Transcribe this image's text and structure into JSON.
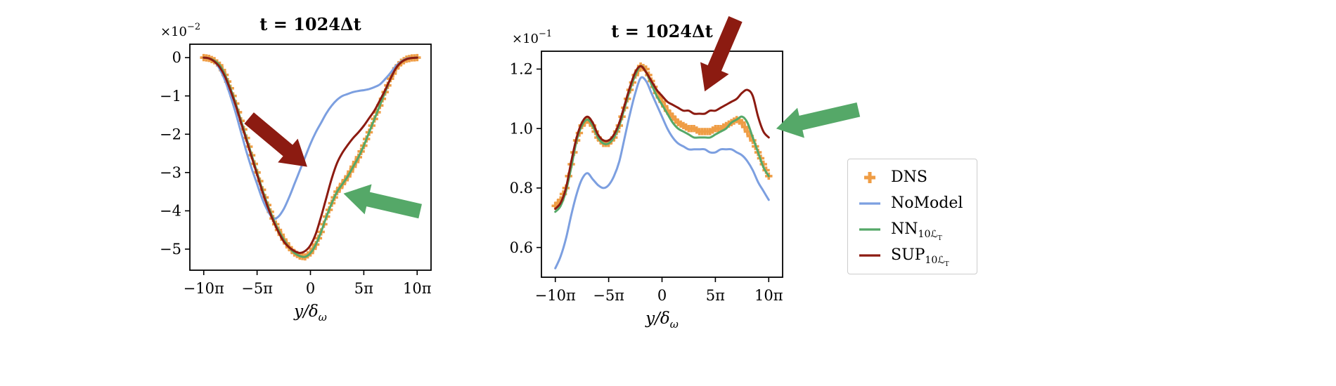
{
  "figure": {
    "background": "#ffffff"
  },
  "legend": {
    "position": "right of plots",
    "items": [
      {
        "label": "DNS",
        "sub": "",
        "subsub": "",
        "marker": "plus",
        "color": "#EF9D45"
      },
      {
        "label": "NoModel",
        "sub": "",
        "subsub": "",
        "marker": "line",
        "color": "#7C9FE0"
      },
      {
        "label": "NN",
        "sub": "10ℒ",
        "subsub": "T",
        "marker": "line",
        "color": "#55A868"
      },
      {
        "label": "SUP",
        "sub": "10ℒ",
        "subsub": "T",
        "marker": "line",
        "color": "#8C1B11"
      }
    ]
  },
  "chart_data": [
    {
      "type": "line",
      "title": "t = 1024Δt",
      "offset_label": {
        "base": "×10",
        "exp": "−2"
      },
      "xlabel": {
        "base": "y/δ",
        "sub": "ω"
      },
      "xlim": [
        -11.3,
        11.3
      ],
      "ylim": [
        -5.55,
        0.35
      ],
      "grid": false,
      "xticks": [
        {
          "v": -10,
          "label": "−10π"
        },
        {
          "v": -5,
          "label": "−5π"
        },
        {
          "v": 0,
          "label": "0"
        },
        {
          "v": 5,
          "label": "5π"
        },
        {
          "v": 10,
          "label": "10π"
        }
      ],
      "yticks": [
        {
          "v": 0,
          "label": "0"
        },
        {
          "v": -1,
          "label": "−1"
        },
        {
          "v": -2,
          "label": "−2"
        },
        {
          "v": -3,
          "label": "−3"
        },
        {
          "v": -4,
          "label": "−4"
        },
        {
          "v": -5,
          "label": "−5"
        }
      ],
      "x": [
        -10,
        -9.5,
        -9,
        -8.5,
        -8,
        -7.5,
        -7,
        -6.5,
        -6,
        -5.5,
        -5,
        -4.5,
        -4,
        -3.5,
        -3,
        -2.5,
        -2,
        -1.5,
        -1,
        -0.5,
        0,
        0.5,
        1,
        1.5,
        2,
        2.5,
        3,
        3.5,
        4,
        4.5,
        5,
        5.5,
        6,
        6.5,
        7,
        7.5,
        8,
        8.5,
        9,
        9.5,
        10
      ],
      "series": [
        {
          "name": "DNS",
          "type": "markers",
          "color": "#EF9D45",
          "values": [
            0,
            -0.02,
            -0.08,
            -0.2,
            -0.45,
            -0.8,
            -1.2,
            -1.65,
            -2.1,
            -2.55,
            -3.0,
            -3.45,
            -3.85,
            -4.2,
            -4.5,
            -4.75,
            -4.95,
            -5.1,
            -5.18,
            -5.2,
            -5.1,
            -4.88,
            -4.55,
            -4.15,
            -3.8,
            -3.5,
            -3.3,
            -3.1,
            -2.85,
            -2.6,
            -2.3,
            -1.95,
            -1.6,
            -1.25,
            -0.9,
            -0.55,
            -0.28,
            -0.12,
            -0.04,
            -0.01,
            0
          ]
        },
        {
          "name": "NoModel",
          "type": "line",
          "color": "#7C9FE0",
          "values": [
            0,
            -0.02,
            -0.1,
            -0.3,
            -0.6,
            -1.0,
            -1.45,
            -1.95,
            -2.45,
            -2.9,
            -3.3,
            -3.7,
            -4.0,
            -4.2,
            -4.15,
            -3.95,
            -3.65,
            -3.3,
            -2.95,
            -2.6,
            -2.25,
            -1.95,
            -1.7,
            -1.45,
            -1.25,
            -1.1,
            -1.0,
            -0.95,
            -0.9,
            -0.87,
            -0.85,
            -0.82,
            -0.77,
            -0.7,
            -0.56,
            -0.4,
            -0.22,
            -0.1,
            -0.03,
            -0.01,
            0
          ]
        },
        {
          "name": "NN10LT",
          "type": "line",
          "color": "#55A868",
          "values": [
            0,
            -0.02,
            -0.08,
            -0.2,
            -0.45,
            -0.8,
            -1.2,
            -1.65,
            -2.1,
            -2.55,
            -3.0,
            -3.45,
            -3.85,
            -4.2,
            -4.5,
            -4.75,
            -4.95,
            -5.1,
            -5.18,
            -5.2,
            -5.1,
            -4.88,
            -4.55,
            -4.15,
            -3.8,
            -3.5,
            -3.3,
            -3.1,
            -2.85,
            -2.6,
            -2.3,
            -1.95,
            -1.6,
            -1.25,
            -0.9,
            -0.55,
            -0.28,
            -0.12,
            -0.04,
            -0.01,
            0
          ]
        },
        {
          "name": "SUP10LT",
          "type": "line",
          "color": "#8C1B11",
          "values": [
            0,
            -0.02,
            -0.1,
            -0.25,
            -0.5,
            -0.85,
            -1.25,
            -1.7,
            -2.15,
            -2.6,
            -3.05,
            -3.5,
            -3.9,
            -4.25,
            -4.55,
            -4.8,
            -4.95,
            -5.05,
            -5.1,
            -5.05,
            -4.9,
            -4.6,
            -4.15,
            -3.65,
            -3.15,
            -2.75,
            -2.48,
            -2.28,
            -2.1,
            -1.95,
            -1.78,
            -1.58,
            -1.38,
            -1.12,
            -0.85,
            -0.55,
            -0.28,
            -0.12,
            -0.04,
            -0.01,
            0
          ]
        }
      ],
      "annotations": [
        {
          "name": "sup-arrow",
          "color": "#8C1B11",
          "tip": [
            -0.3,
            -2.85
          ],
          "angle": 40,
          "length": 108
        },
        {
          "name": "nn-arrow",
          "color": "#55A868",
          "tip": [
            3.1,
            -3.55
          ],
          "angle": 193,
          "length": 112
        }
      ]
    },
    {
      "type": "line",
      "title": "t = 1024Δt",
      "offset_label": {
        "base": "×10",
        "exp": "−1"
      },
      "xlabel": {
        "base": "y/δ",
        "sub": "ω"
      },
      "xlim": [
        -11.3,
        11.3
      ],
      "ylim": [
        0.5,
        1.26
      ],
      "grid": false,
      "xticks": [
        {
          "v": -10,
          "label": "−10π"
        },
        {
          "v": -5,
          "label": "−5π"
        },
        {
          "v": 0,
          "label": "0"
        },
        {
          "v": 5,
          "label": "5π"
        },
        {
          "v": 10,
          "label": "10π"
        }
      ],
      "yticks": [
        {
          "v": 0.6,
          "label": "0.6"
        },
        {
          "v": 0.8,
          "label": "0.8"
        },
        {
          "v": 1.0,
          "label": "1.0"
        },
        {
          "v": 1.2,
          "label": "1.2"
        }
      ],
      "x": [
        -10,
        -9.5,
        -9,
        -8.5,
        -8,
        -7.5,
        -7,
        -6.5,
        -6,
        -5.5,
        -5,
        -4.5,
        -4,
        -3.5,
        -3,
        -2.5,
        -2,
        -1.5,
        -1,
        -0.5,
        0,
        0.5,
        1,
        1.5,
        2,
        2.5,
        3,
        3.5,
        4,
        4.5,
        5,
        5.5,
        6,
        6.5,
        7,
        7.5,
        8,
        8.5,
        9,
        9.5,
        10
      ],
      "series": [
        {
          "name": "DNS",
          "type": "markers",
          "color": "#EF9D45",
          "values": [
            0.74,
            0.76,
            0.8,
            0.88,
            0.96,
            1.01,
            1.03,
            1.01,
            0.97,
            0.95,
            0.95,
            0.97,
            1.01,
            1.07,
            1.13,
            1.18,
            1.21,
            1.2,
            1.16,
            1.12,
            1.09,
            1.06,
            1.04,
            1.02,
            1.01,
            1.0,
            1.0,
            0.99,
            0.99,
            0.99,
            1.0,
            1.0,
            1.01,
            1.02,
            1.03,
            1.02,
            0.99,
            0.96,
            0.92,
            0.88,
            0.84
          ]
        },
        {
          "name": "NoModel",
          "type": "line",
          "color": "#7C9FE0",
          "values": [
            0.53,
            0.57,
            0.63,
            0.71,
            0.78,
            0.83,
            0.85,
            0.83,
            0.81,
            0.8,
            0.81,
            0.84,
            0.89,
            0.97,
            1.05,
            1.12,
            1.17,
            1.16,
            1.12,
            1.08,
            1.04,
            1.0,
            0.97,
            0.95,
            0.94,
            0.93,
            0.93,
            0.93,
            0.93,
            0.92,
            0.92,
            0.93,
            0.93,
            0.93,
            0.92,
            0.91,
            0.89,
            0.86,
            0.82,
            0.79,
            0.76
          ]
        },
        {
          "name": "NN10LT",
          "type": "line",
          "color": "#55A868",
          "values": [
            0.72,
            0.74,
            0.79,
            0.87,
            0.96,
            1.01,
            1.03,
            1.01,
            0.97,
            0.95,
            0.95,
            0.97,
            1.01,
            1.07,
            1.13,
            1.18,
            1.21,
            1.19,
            1.15,
            1.11,
            1.08,
            1.05,
            1.02,
            1.0,
            0.99,
            0.98,
            0.97,
            0.97,
            0.97,
            0.97,
            0.98,
            0.99,
            1.0,
            1.02,
            1.03,
            1.04,
            1.02,
            0.97,
            0.92,
            0.87,
            0.84
          ]
        },
        {
          "name": "SUP10LT",
          "type": "line",
          "color": "#8C1B11",
          "values": [
            0.73,
            0.75,
            0.8,
            0.89,
            0.97,
            1.02,
            1.04,
            1.02,
            0.98,
            0.96,
            0.96,
            0.98,
            1.02,
            1.08,
            1.14,
            1.19,
            1.21,
            1.19,
            1.16,
            1.13,
            1.11,
            1.09,
            1.08,
            1.07,
            1.06,
            1.06,
            1.05,
            1.05,
            1.05,
            1.06,
            1.06,
            1.07,
            1.08,
            1.09,
            1.1,
            1.12,
            1.13,
            1.11,
            1.04,
            0.99,
            0.97
          ]
        }
      ],
      "annotations": [
        {
          "name": "sup-arrow",
          "color": "#8C1B11",
          "tip": [
            4.0,
            1.125
          ],
          "angle": 113,
          "length": 112
        },
        {
          "name": "nn-arrow",
          "color": "#55A868",
          "tip": [
            10.7,
            1.0
          ],
          "angle": 167,
          "length": 120
        }
      ]
    }
  ]
}
